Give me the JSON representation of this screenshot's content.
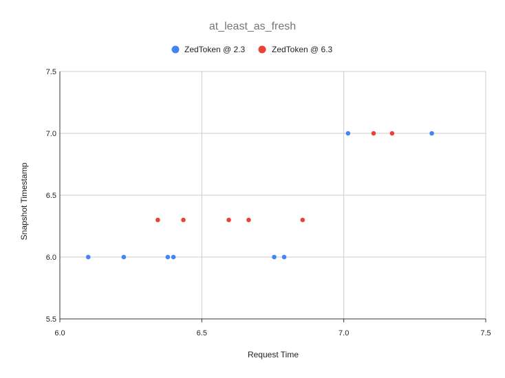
{
  "chart_data": {
    "type": "scatter",
    "title": "at_least_as_fresh",
    "xlabel": "Request Time",
    "ylabel": "Snapshot Timestamp",
    "xlim": [
      6.0,
      7.5
    ],
    "ylim": [
      5.5,
      7.5
    ],
    "xticks": [
      "6.0",
      "6.5",
      "7.0",
      "7.5"
    ],
    "yticks": [
      "5.5",
      "6.0",
      "6.5",
      "7.0",
      "7.5"
    ],
    "grid": true,
    "legend_position": "top",
    "series": [
      {
        "name": "ZedToken @ 2.3",
        "color": "#4285f4",
        "points": [
          [
            6.1,
            6.0
          ],
          [
            6.225,
            6.0
          ],
          [
            6.38,
            6.0
          ],
          [
            6.4,
            6.0
          ],
          [
            6.755,
            6.0
          ],
          [
            6.79,
            6.0
          ],
          [
            7.015,
            7.0
          ],
          [
            7.31,
            7.0
          ]
        ]
      },
      {
        "name": "ZedToken @ 6.3",
        "color": "#ea4335",
        "points": [
          [
            6.345,
            6.3
          ],
          [
            6.435,
            6.3
          ],
          [
            6.595,
            6.3
          ],
          [
            6.665,
            6.3
          ],
          [
            6.855,
            6.3
          ],
          [
            7.105,
            7.0
          ],
          [
            7.17,
            7.0
          ]
        ]
      }
    ]
  }
}
